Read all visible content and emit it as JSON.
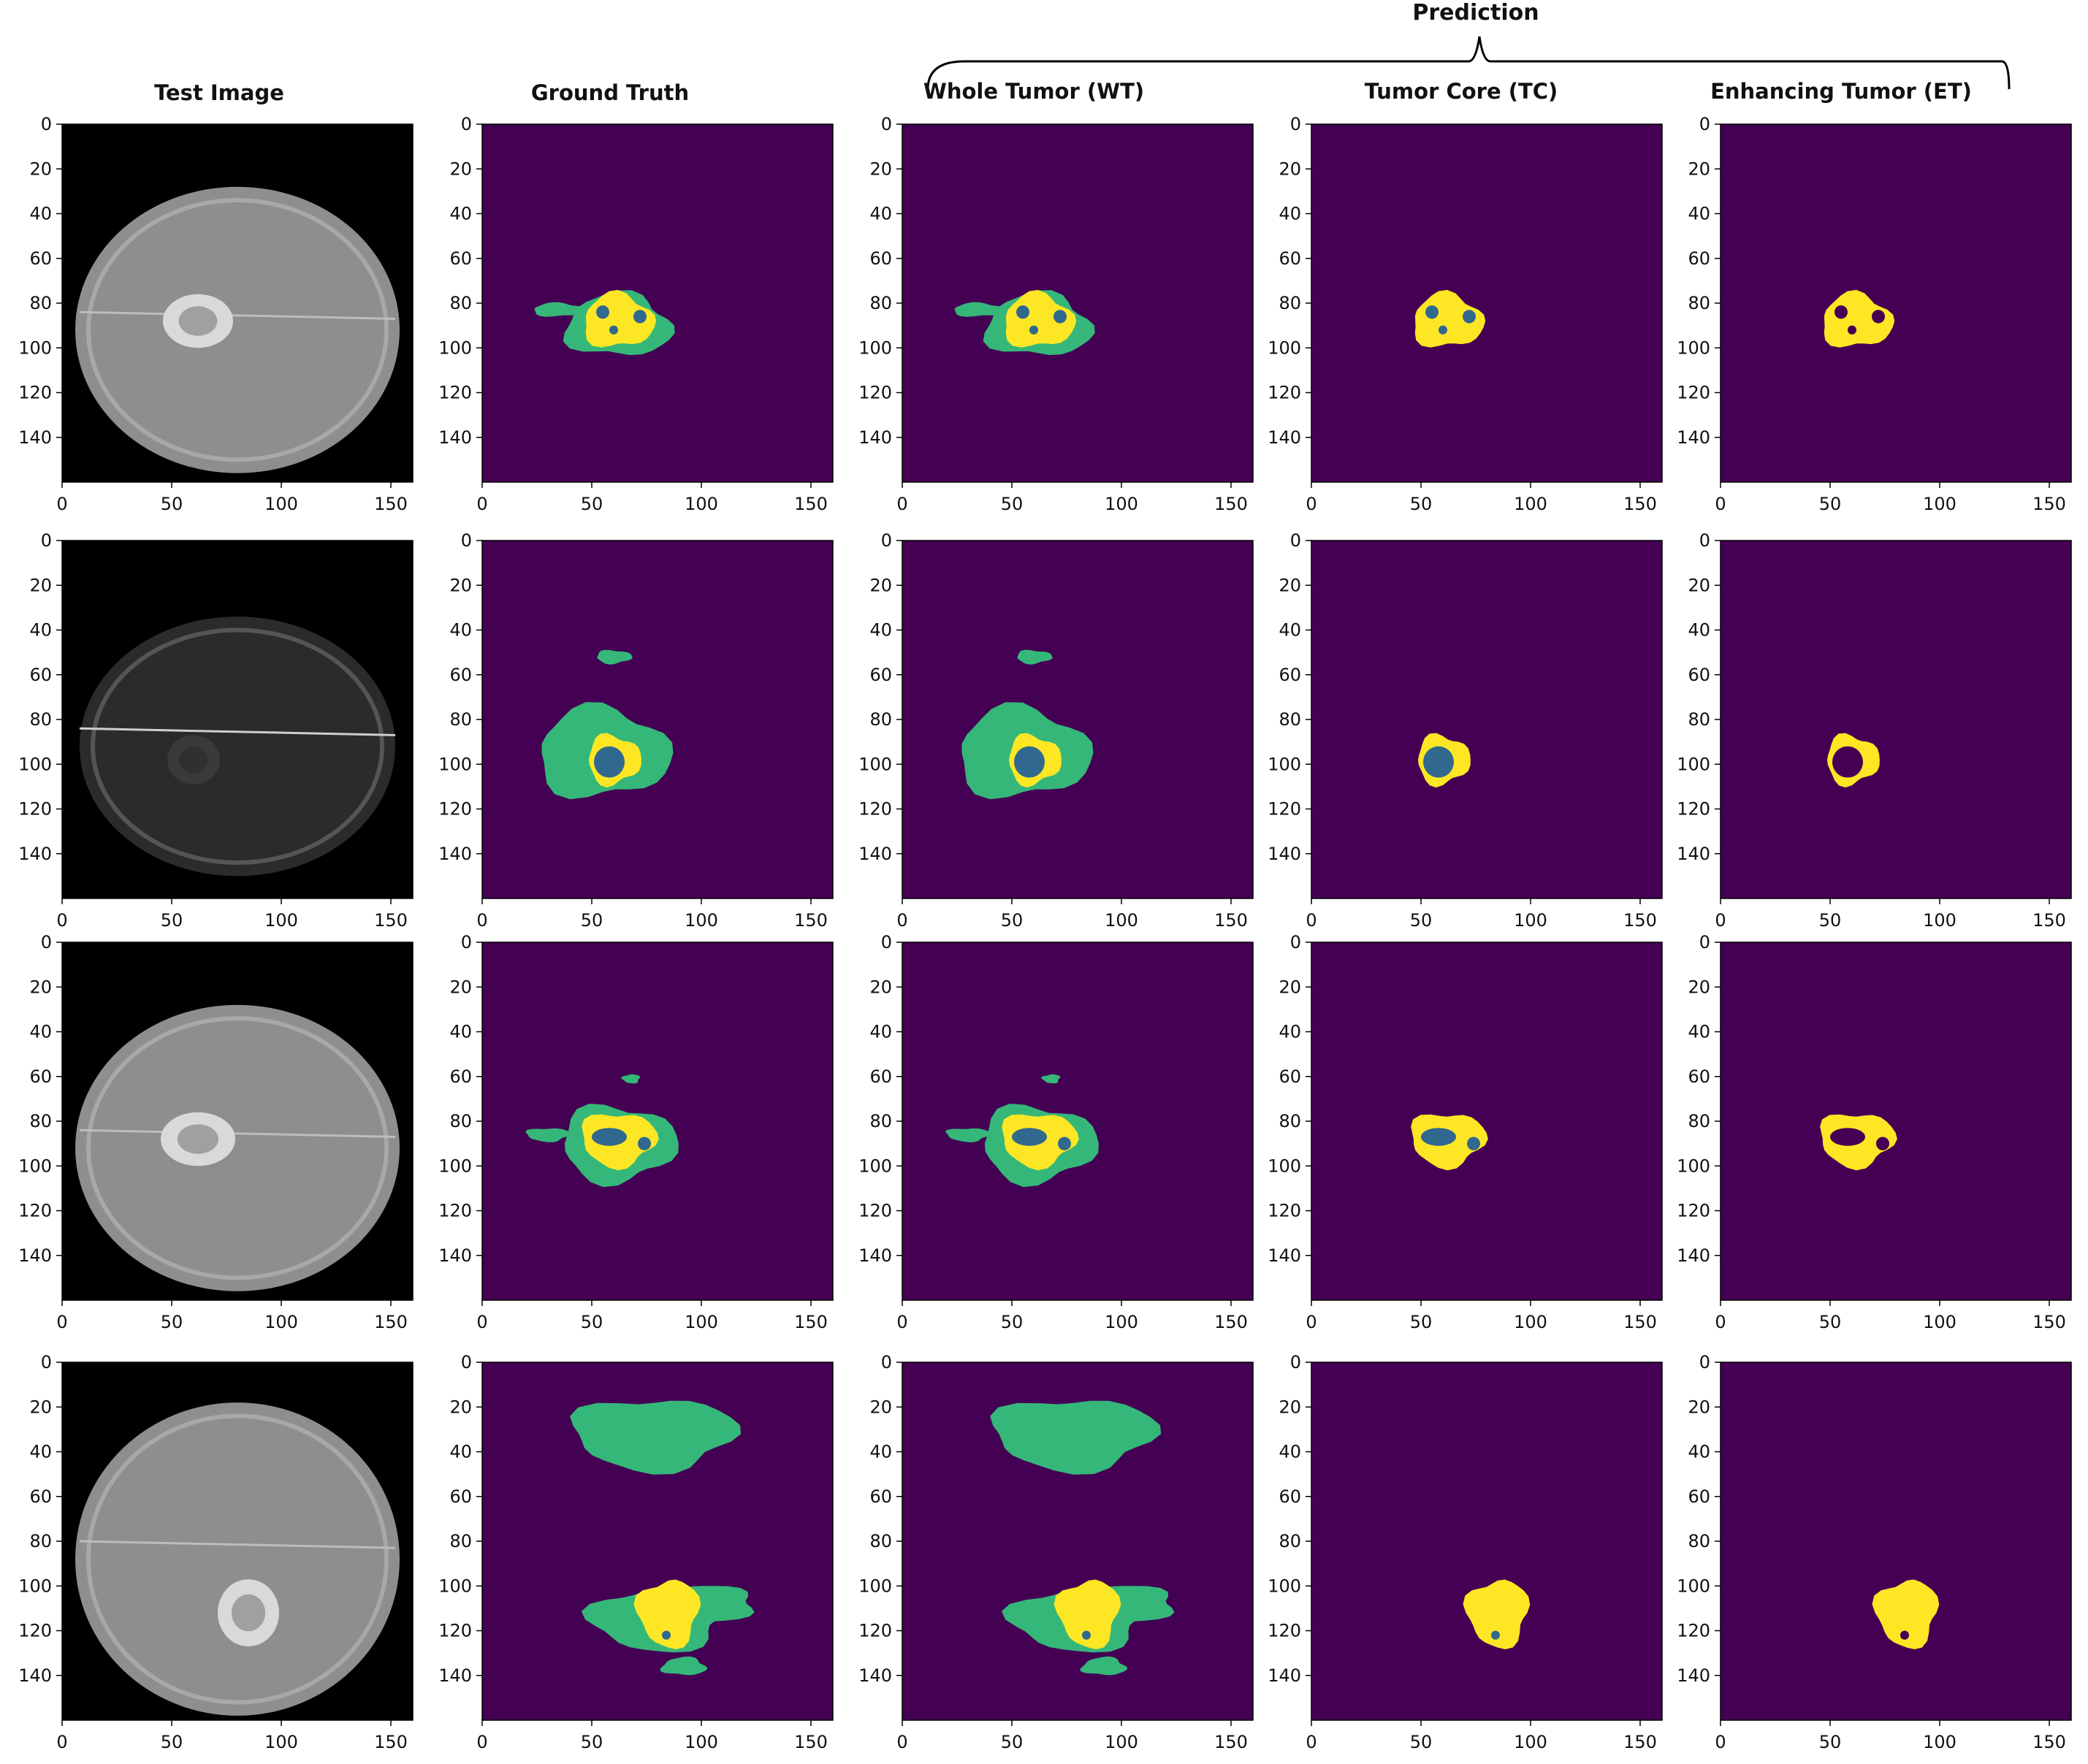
{
  "header": {
    "prediction_label": "Prediction",
    "columns": [
      "Test Image",
      "Ground Truth",
      "Whole Tumor (WT)",
      "Tumor Core (TC)",
      "Enhancing Tumor (ET)"
    ]
  },
  "axes": {
    "x_ticks": [
      "0",
      "50",
      "100",
      "150"
    ],
    "y_ticks": [
      "0",
      "20",
      "40",
      "60",
      "80",
      "100",
      "120",
      "140"
    ]
  },
  "colors": {
    "background": "#440154",
    "edema_green": "#35b779",
    "enhancing_yellow": "#fde725",
    "necrotic_blue": "#31688e",
    "mri_black": "#000000"
  },
  "grid": {
    "rows": 4,
    "columns": 5
  }
}
